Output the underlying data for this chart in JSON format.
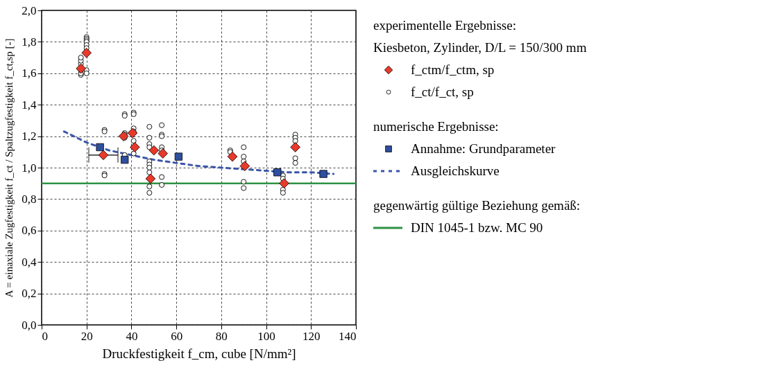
{
  "chart_data": {
    "type": "scatter",
    "xlabel": "Druckfestigkeit f_cm, cube [N/mm²]",
    "ylabel": "A = einaxiale Zugfestigkeit f_ct / Spaltzugfestigkeit f_ct,sp [-]",
    "xlim": [
      0,
      140
    ],
    "xticks": [
      0,
      20,
      40,
      60,
      80,
      100,
      120,
      140
    ],
    "ylim": [
      0,
      2
    ],
    "yticks": [
      {
        "value": 0,
        "label": "0,0"
      },
      {
        "value": 0.2,
        "label": "0,2"
      },
      {
        "value": 0.4,
        "label": "0,4"
      },
      {
        "value": 0.6,
        "label": "0,6"
      },
      {
        "value": 0.8,
        "label": "0,8"
      },
      {
        "value": 1.0,
        "label": "1,0"
      },
      {
        "value": 1.2,
        "label": "1,2"
      },
      {
        "value": 1.4,
        "label": "1,4"
      },
      {
        "value": 1.6,
        "label": "1,6"
      },
      {
        "value": 1.8,
        "label": "1,8"
      },
      {
        "value": 2.0,
        "label": "2,0"
      }
    ],
    "grid": true,
    "legend": "right",
    "annotations": [
      "experimentelle Ergebnisse:",
      "Kiesbeton, Zylinder, D/L = 150/300 mm",
      "numerische Ergebnisse:",
      "gegenwärtig gültige Beziehung gemäß:"
    ],
    "ref_lines": [
      {
        "axis": "y",
        "value": 0.9,
        "label": "DIN 1045-1 bzw. MC 90",
        "color": "#2e9244"
      }
    ],
    "series": [
      {
        "name": "f_ctm/f_ctm, sp",
        "marker": "diamond",
        "color": "#e8392a",
        "x": [
          17.5,
          20,
          27.5,
          36.5,
          40.5,
          41.5,
          48.5,
          50,
          54,
          85,
          90.5,
          108,
          113
        ],
        "values": [
          1.63,
          1.73,
          1.08,
          1.2,
          1.22,
          1.13,
          0.93,
          1.11,
          1.09,
          1.07,
          1.01,
          0.9,
          1.13
        ],
        "xerrors": [
          null,
          null,
          [
            21,
            34
          ],
          null,
          null,
          null,
          null,
          null,
          null,
          null,
          null,
          null,
          null
        ]
      },
      {
        "name": "f_ct/f_ct, sp",
        "marker": "circle",
        "color": "#000000",
        "x": [
          17.5,
          17.5,
          17.5,
          17.5,
          17.5,
          17.5,
          20,
          20,
          20,
          20,
          20,
          20,
          20,
          20,
          28,
          28,
          28,
          28,
          37,
          37,
          37,
          37,
          37,
          37,
          41,
          41,
          41,
          41,
          41,
          41,
          48,
          48,
          48,
          48,
          48,
          48,
          48,
          48,
          48,
          48,
          53.5,
          53.5,
          53.5,
          53.5,
          53.5,
          53.5,
          53.5,
          84,
          84,
          90,
          90,
          90,
          90,
          90,
          107.5,
          107.5,
          107.5,
          107.5,
          113,
          113,
          113,
          113,
          113
        ],
        "values": [
          1.59,
          1.6,
          1.62,
          1.66,
          1.68,
          1.7,
          1.83,
          1.82,
          1.81,
          1.8,
          1.78,
          1.76,
          1.62,
          1.6,
          1.24,
          1.23,
          0.96,
          0.95,
          1.34,
          1.33,
          1.22,
          1.21,
          1.19,
          1.08,
          1.35,
          1.34,
          1.25,
          1.23,
          1.17,
          1.09,
          1.26,
          1.19,
          1.15,
          1.13,
          1.04,
          1.02,
          1.0,
          0.97,
          0.88,
          0.84,
          1.27,
          1.21,
          1.2,
          1.13,
          1.11,
          0.94,
          0.89,
          1.11,
          1.1,
          1.13,
          1.07,
          1.04,
          0.91,
          0.87,
          0.95,
          0.93,
          0.86,
          0.84,
          1.21,
          1.19,
          1.17,
          1.06,
          1.03
        ]
      },
      {
        "name": "Annahme: Grundparameter",
        "marker": "square",
        "color": "#2f4f9e",
        "x": [
          26,
          37,
          61,
          105,
          125.5
        ],
        "values": [
          1.13,
          1.05,
          1.07,
          0.97,
          0.96
        ]
      },
      {
        "name": "Ausgleichskurve",
        "type": "line",
        "line_style": "dashed",
        "color": "#3b55a8",
        "x": [
          10,
          20,
          30,
          40,
          50,
          60,
          70,
          80,
          90,
          100,
          110,
          120,
          130
        ],
        "values": [
          1.23,
          1.16,
          1.11,
          1.08,
          1.05,
          1.03,
          1.01,
          1.0,
          0.99,
          0.98,
          0.97,
          0.97,
          0.96
        ]
      }
    ]
  }
}
